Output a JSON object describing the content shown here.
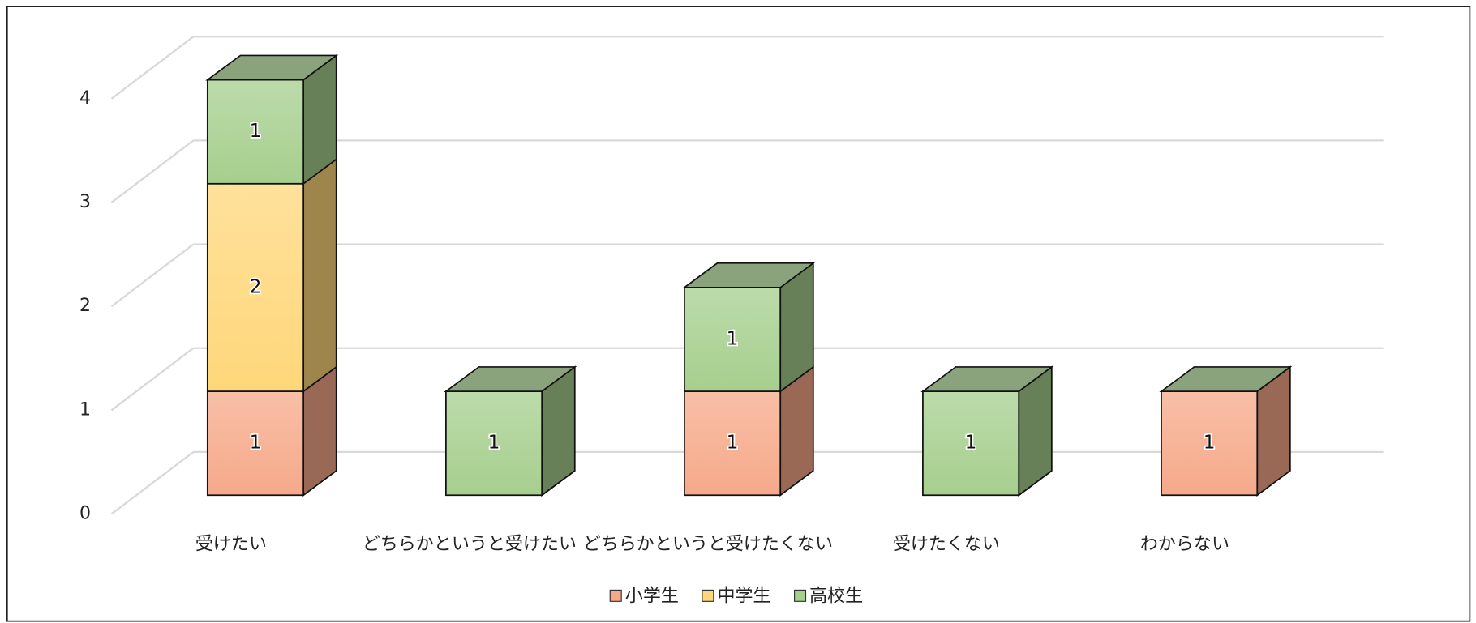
{
  "chart_data": {
    "type": "bar3d_stacked",
    "categories": [
      "受けたい",
      "どちらかというと受けたい",
      "どちらかというと受けたくない",
      "受けたくない",
      "わからない"
    ],
    "series": [
      {
        "name": "小学生",
        "color": "#f6a98a",
        "values": [
          1,
          0,
          1,
          0,
          1
        ]
      },
      {
        "name": "中学生",
        "color": "#ffd77a",
        "values": [
          2,
          0,
          0,
          0,
          0
        ]
      },
      {
        "name": "高校生",
        "color": "#a6cf8e",
        "values": [
          1,
          1,
          1,
          1,
          0
        ]
      }
    ],
    "ylim": [
      0,
      4
    ],
    "yticks": [
      0,
      1,
      2,
      3,
      4
    ],
    "grid": true,
    "legend": "bottom"
  }
}
